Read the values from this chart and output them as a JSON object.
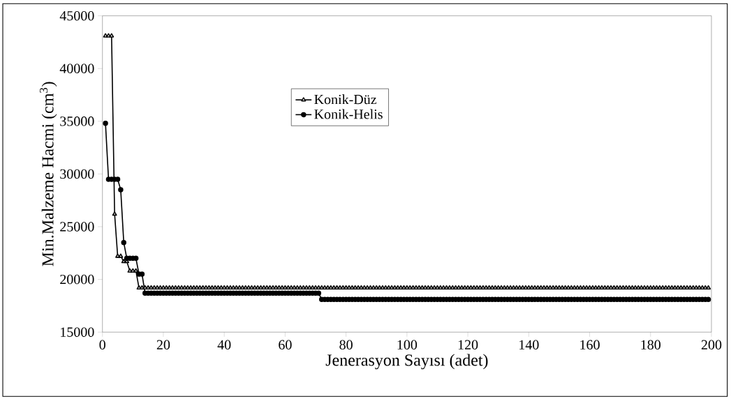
{
  "chart_data": {
    "type": "line",
    "xlabel": "Jenerasyon Sayısı (adet)",
    "ylabel": "Min.Malzeme Hacmi (cm$^{3}$)",
    "x": [
      1,
      2,
      3,
      4,
      5,
      6,
      7,
      8,
      9,
      10,
      11,
      12,
      13,
      14,
      15,
      16,
      17,
      18,
      19,
      20,
      21,
      22,
      23,
      24,
      25,
      26,
      27,
      28,
      29,
      30,
      31,
      32,
      33,
      34,
      35,
      36,
      37,
      38,
      39,
      40,
      41,
      42,
      43,
      44,
      45,
      46,
      47,
      48,
      49,
      50,
      51,
      52,
      53,
      54,
      55,
      56,
      57,
      58,
      59,
      60,
      61,
      62,
      63,
      64,
      65,
      66,
      67,
      68,
      69,
      70,
      71,
      72,
      73,
      74,
      75,
      76,
      77,
      78,
      79,
      80,
      81,
      82,
      83,
      84,
      85,
      86,
      87,
      88,
      89,
      90,
      91,
      92,
      93,
      94,
      95,
      96,
      97,
      98,
      99,
      100,
      101,
      102,
      103,
      104,
      105,
      106,
      107,
      108,
      109,
      110,
      111,
      112,
      113,
      114,
      115,
      116,
      117,
      118,
      119,
      120,
      121,
      122,
      123,
      124,
      125,
      126,
      127,
      128,
      129,
      130,
      131,
      132,
      133,
      134,
      135,
      136,
      137,
      138,
      139,
      140,
      141,
      142,
      143,
      144,
      145,
      146,
      147,
      148,
      149,
      150,
      151,
      152,
      153,
      154,
      155,
      156,
      157,
      158,
      159,
      160,
      161,
      162,
      163,
      164,
      165,
      166,
      167,
      168,
      169,
      170,
      171,
      172,
      173,
      174,
      175,
      176,
      177,
      178,
      179,
      180,
      181,
      182,
      183,
      184,
      185,
      186,
      187,
      188,
      189,
      190,
      191,
      192,
      193,
      194,
      195,
      196,
      197,
      198,
      199
    ],
    "series": [
      {
        "name": "Konik-Düz",
        "color": "#000000",
        "marker": "triangle",
        "values": [
          43100,
          43100,
          43100,
          26200,
          22200,
          22200,
          21700,
          21700,
          20800,
          20800,
          20800,
          19200,
          19200,
          19200,
          19200,
          19200,
          19200,
          19200,
          19200,
          19200,
          19200,
          19200,
          19200,
          19200,
          19200,
          19200,
          19200,
          19200,
          19200,
          19200,
          19200,
          19200,
          19200,
          19200,
          19200,
          19200,
          19200,
          19200,
          19200,
          19200,
          19200,
          19200,
          19200,
          19200,
          19200,
          19200,
          19200,
          19200,
          19200,
          19200,
          19200,
          19200,
          19200,
          19200,
          19200,
          19200,
          19200,
          19200,
          19200,
          19200,
          19200,
          19200,
          19200,
          19200,
          19200,
          19200,
          19200,
          19200,
          19200,
          19200,
          19200,
          19200,
          19200,
          19200,
          19200,
          19200,
          19200,
          19200,
          19200,
          19200,
          19200,
          19200,
          19200,
          19200,
          19200,
          19200,
          19200,
          19200,
          19200,
          19200,
          19200,
          19200,
          19200,
          19200,
          19200,
          19200,
          19200,
          19200,
          19200,
          19200,
          19200,
          19200,
          19200,
          19200,
          19200,
          19200,
          19200,
          19200,
          19200,
          19200,
          19200,
          19200,
          19200,
          19200,
          19200,
          19200,
          19200,
          19200,
          19200,
          19200,
          19200,
          19200,
          19200,
          19200,
          19200,
          19200,
          19200,
          19200,
          19200,
          19200,
          19200,
          19200,
          19200,
          19200,
          19200,
          19200,
          19200,
          19200,
          19200,
          19200,
          19200,
          19200,
          19200,
          19200,
          19200,
          19200,
          19200,
          19200,
          19200,
          19200,
          19200,
          19200,
          19200,
          19200,
          19200,
          19200,
          19200,
          19200,
          19200,
          19200,
          19200,
          19200,
          19200,
          19200,
          19200,
          19200,
          19200,
          19200,
          19200,
          19200,
          19200,
          19200,
          19200,
          19200,
          19200,
          19200,
          19200,
          19200,
          19200,
          19200,
          19200,
          19200,
          19200,
          19200,
          19200,
          19200,
          19200,
          19200,
          19200,
          19200,
          19200,
          19200,
          19200,
          19200,
          19200,
          19200,
          19200,
          19200,
          19200
        ]
      },
      {
        "name": "Konik-Helis",
        "color": "#000000",
        "marker": "circle",
        "values": [
          34800,
          29500,
          29500,
          29500,
          29500,
          28500,
          23500,
          22000,
          22000,
          22000,
          22000,
          20500,
          20500,
          18700,
          18700,
          18700,
          18700,
          18700,
          18700,
          18700,
          18700,
          18700,
          18700,
          18700,
          18700,
          18700,
          18700,
          18700,
          18700,
          18700,
          18700,
          18700,
          18700,
          18700,
          18700,
          18700,
          18700,
          18700,
          18700,
          18700,
          18700,
          18700,
          18700,
          18700,
          18700,
          18700,
          18700,
          18700,
          18700,
          18700,
          18700,
          18700,
          18700,
          18700,
          18700,
          18700,
          18700,
          18700,
          18700,
          18700,
          18700,
          18700,
          18700,
          18700,
          18700,
          18700,
          18700,
          18700,
          18700,
          18700,
          18700,
          18100,
          18100,
          18100,
          18100,
          18100,
          18100,
          18100,
          18100,
          18100,
          18100,
          18100,
          18100,
          18100,
          18100,
          18100,
          18100,
          18100,
          18100,
          18100,
          18100,
          18100,
          18100,
          18100,
          18100,
          18100,
          18100,
          18100,
          18100,
          18100,
          18100,
          18100,
          18100,
          18100,
          18100,
          18100,
          18100,
          18100,
          18100,
          18100,
          18100,
          18100,
          18100,
          18100,
          18100,
          18100,
          18100,
          18100,
          18100,
          18100,
          18100,
          18100,
          18100,
          18100,
          18100,
          18100,
          18100,
          18100,
          18100,
          18100,
          18100,
          18100,
          18100,
          18100,
          18100,
          18100,
          18100,
          18100,
          18100,
          18100,
          18100,
          18100,
          18100,
          18100,
          18100,
          18100,
          18100,
          18100,
          18100,
          18100,
          18100,
          18100,
          18100,
          18100,
          18100,
          18100,
          18100,
          18100,
          18100,
          18100,
          18100,
          18100,
          18100,
          18100,
          18100,
          18100,
          18100,
          18100,
          18100,
          18100,
          18100,
          18100,
          18100,
          18100,
          18100,
          18100,
          18100,
          18100,
          18100,
          18100,
          18100,
          18100,
          18100,
          18100,
          18100,
          18100,
          18100,
          18100,
          18100,
          18100,
          18100,
          18100,
          18100,
          18100,
          18100,
          18100,
          18100,
          18100,
          18100
        ]
      }
    ],
    "xlim": [
      0,
      200
    ],
    "xticks": [
      0,
      20,
      40,
      60,
      80,
      100,
      120,
      140,
      160,
      180,
      200
    ],
    "ylim": [
      15000,
      45000
    ],
    "yticks": [
      15000,
      20000,
      25000,
      30000,
      35000,
      40000,
      45000
    ],
    "legend": "top",
    "line_style": "solid",
    "grid": false
  }
}
